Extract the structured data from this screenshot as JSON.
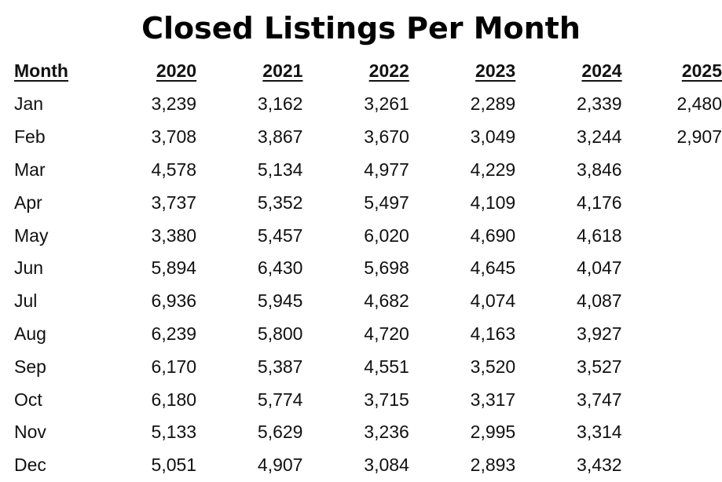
{
  "title": "Closed Listings Per Month",
  "table": {
    "month_header": "Month",
    "years": [
      "2020",
      "2021",
      "2022",
      "2023",
      "2024",
      "2025"
    ],
    "rows": [
      {
        "month": "Jan",
        "values": [
          "3,239",
          "3,162",
          "3,261",
          "2,289",
          "2,339",
          "2,480"
        ]
      },
      {
        "month": "Feb",
        "values": [
          "3,708",
          "3,867",
          "3,670",
          "3,049",
          "3,244",
          "2,907"
        ]
      },
      {
        "month": "Mar",
        "values": [
          "4,578",
          "5,134",
          "4,977",
          "4,229",
          "3,846",
          ""
        ]
      },
      {
        "month": "Apr",
        "values": [
          "3,737",
          "5,352",
          "5,497",
          "4,109",
          "4,176",
          ""
        ]
      },
      {
        "month": "May",
        "values": [
          "3,380",
          "5,457",
          "6,020",
          "4,690",
          "4,618",
          ""
        ]
      },
      {
        "month": "Jun",
        "values": [
          "5,894",
          "6,430",
          "5,698",
          "4,645",
          "4,047",
          ""
        ]
      },
      {
        "month": "Jul",
        "values": [
          "6,936",
          "5,945",
          "4,682",
          "4,074",
          "4,087",
          ""
        ]
      },
      {
        "month": "Aug",
        "values": [
          "6,239",
          "5,800",
          "4,720",
          "4,163",
          "3,927",
          ""
        ]
      },
      {
        "month": "Sep",
        "values": [
          "6,170",
          "5,387",
          "4,551",
          "3,520",
          "3,527",
          ""
        ]
      },
      {
        "month": "Oct",
        "values": [
          "6,180",
          "5,774",
          "3,715",
          "3,317",
          "3,747",
          ""
        ]
      },
      {
        "month": "Nov",
        "values": [
          "5,133",
          "5,629",
          "3,236",
          "2,995",
          "3,314",
          ""
        ]
      },
      {
        "month": "Dec",
        "values": [
          "5,051",
          "4,907",
          "3,084",
          "2,893",
          "3,432",
          ""
        ]
      }
    ]
  }
}
